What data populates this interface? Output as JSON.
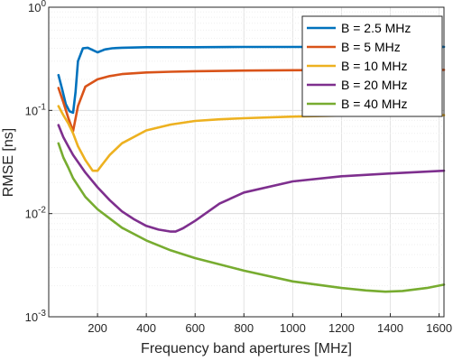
{
  "chart_data": {
    "type": "line",
    "title": "",
    "xlabel": "Frequency band apertures [MHz]",
    "ylabel": "RMSE [ns]",
    "xscale": "linear",
    "yscale": "log",
    "xlim": [
      0,
      1620
    ],
    "ylim": [
      0.001,
      1
    ],
    "xticks": [
      200,
      400,
      600,
      800,
      1000,
      1200,
      1400,
      1600
    ],
    "xtick_labels": [
      "200",
      "400",
      "600",
      "800",
      "1000",
      "1200",
      "1400",
      "1600"
    ],
    "yticks": [
      0.001,
      0.01,
      0.1,
      1
    ],
    "ytick_bases": [
      "10",
      "10",
      "10",
      "10"
    ],
    "ytick_exponents": [
      "-3",
      "-2",
      "-1",
      "0"
    ],
    "grid": true,
    "legend_position": "top-right",
    "series": [
      {
        "name": "B = 2.5 MHz",
        "color": "#0072BD",
        "x": [
          40,
          55,
          70,
          85,
          100,
          110,
          120,
          140,
          160,
          180,
          200,
          230,
          260,
          300,
          400,
          600,
          800,
          1000,
          1200,
          1400,
          1620
        ],
        "y": [
          0.22,
          0.16,
          0.115,
          0.098,
          0.095,
          0.15,
          0.3,
          0.4,
          0.405,
          0.385,
          0.365,
          0.39,
          0.4,
          0.405,
          0.41,
          0.41,
          0.412,
          0.412,
          0.413,
          0.413,
          0.413
        ]
      },
      {
        "name": "B = 5 MHz",
        "color": "#D95319",
        "x": [
          40,
          60,
          80,
          100,
          120,
          150,
          200,
          250,
          300,
          400,
          500,
          600,
          800,
          1000,
          1200,
          1400,
          1620
        ],
        "y": [
          0.165,
          0.12,
          0.085,
          0.063,
          0.11,
          0.17,
          0.2,
          0.215,
          0.225,
          0.233,
          0.237,
          0.24,
          0.243,
          0.245,
          0.246,
          0.247,
          0.247
        ]
      },
      {
        "name": "B = 10 MHz",
        "color": "#EDB120",
        "x": [
          40,
          60,
          80,
          100,
          120,
          150,
          180,
          200,
          220,
          250,
          300,
          400,
          500,
          600,
          700,
          800,
          1000,
          1200,
          1400,
          1620
        ],
        "y": [
          0.11,
          0.09,
          0.075,
          0.06,
          0.045,
          0.033,
          0.026,
          0.026,
          0.03,
          0.037,
          0.048,
          0.064,
          0.073,
          0.079,
          0.082,
          0.084,
          0.087,
          0.089,
          0.09,
          0.09
        ]
      },
      {
        "name": "B = 20 MHz",
        "color": "#7E2F8E",
        "x": [
          40,
          60,
          80,
          100,
          150,
          200,
          250,
          300,
          350,
          400,
          450,
          500,
          520,
          550,
          600,
          700,
          800,
          1000,
          1200,
          1400,
          1620
        ],
        "y": [
          0.072,
          0.055,
          0.045,
          0.037,
          0.025,
          0.018,
          0.0135,
          0.0105,
          0.0088,
          0.0076,
          0.007,
          0.0067,
          0.0067,
          0.0072,
          0.0085,
          0.0125,
          0.016,
          0.0205,
          0.023,
          0.0245,
          0.026
        ]
      },
      {
        "name": "B = 40 MHz",
        "color": "#77AC30",
        "x": [
          40,
          60,
          80,
          100,
          150,
          200,
          300,
          400,
          500,
          600,
          800,
          1000,
          1200,
          1300,
          1380,
          1450,
          1550,
          1620
        ],
        "y": [
          0.048,
          0.035,
          0.028,
          0.022,
          0.0145,
          0.011,
          0.0073,
          0.0055,
          0.0044,
          0.0037,
          0.0028,
          0.0022,
          0.0019,
          0.0018,
          0.00175,
          0.00178,
          0.0019,
          0.00205
        ]
      }
    ]
  }
}
